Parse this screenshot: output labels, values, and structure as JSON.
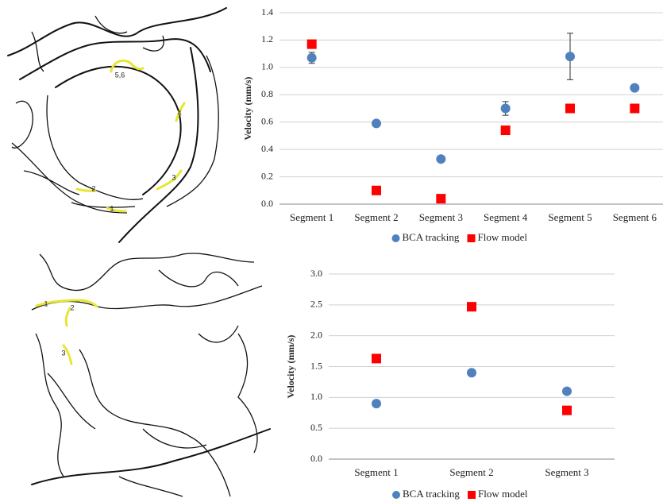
{
  "chart_data": [
    {
      "type": "scatter",
      "categories": [
        "Segment 1",
        "Segment 2",
        "Segment 3",
        "Segment 4",
        "Segment 5",
        "Segment 6"
      ],
      "ylabel": "Velocity (mm/s)",
      "series": [
        {
          "name": "BCA tracking",
          "color": "#4f81bd",
          "marker": "circle",
          "values": [
            1.07,
            0.59,
            0.33,
            0.7,
            1.08,
            0.85
          ],
          "errors": [
            0.04,
            0,
            0,
            0.05,
            0.17,
            0
          ]
        },
        {
          "name": "Flow model",
          "color": "#ff0000",
          "marker": "square",
          "values": [
            1.17,
            0.1,
            0.04,
            0.54,
            0.7,
            0.7
          ]
        }
      ],
      "ylim": [
        0,
        1.4
      ],
      "yticks": [
        {
          "value": 0,
          "label": "0.0"
        },
        0.2,
        0.4,
        0.6,
        0.8,
        {
          "value": 1,
          "label": "1.0"
        },
        1.2,
        1.4
      ],
      "grid": true,
      "legend": "bottom"
    },
    {
      "type": "scatter",
      "categories": [
        "Segment 1",
        "Segment 2",
        "Segment 3"
      ],
      "ylabel": "Velocity (mm/s)",
      "series": [
        {
          "name": "BCA tracking",
          "color": "#4f81bd",
          "marker": "circle",
          "values": [
            0.9,
            1.4,
            1.1
          ]
        },
        {
          "name": "Flow model",
          "color": "#ff0000",
          "marker": "square",
          "values": [
            1.63,
            2.47,
            0.79
          ]
        }
      ],
      "ylim": [
        0,
        3
      ],
      "yticks": [
        {
          "value": 0,
          "label": "0.0"
        },
        0.5,
        {
          "value": 1,
          "label": "1.0"
        },
        1.5,
        {
          "value": 2,
          "label": "2.0"
        },
        2.5,
        {
          "value": 3,
          "label": "3.0"
        }
      ],
      "grid": true,
      "legend": "bottom"
    }
  ],
  "diagrams": [
    {
      "labels": [
        "5,6",
        "4",
        "3",
        "2",
        "1"
      ]
    },
    {
      "labels": [
        "1",
        "2",
        "3"
      ]
    }
  ]
}
